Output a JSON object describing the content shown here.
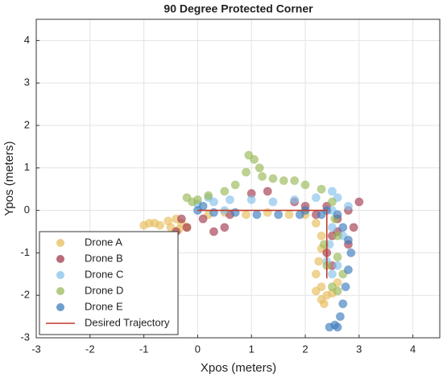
{
  "chart_data": {
    "type": "scatter",
    "title": "90 Degree Protected Corner",
    "xlabel": "Xpos (meters)",
    "ylabel": "Ypos (meters)",
    "xlim": [
      -3,
      4.5
    ],
    "ylim": [
      -3,
      4.5
    ],
    "xticks": [
      -3,
      -2,
      -1,
      0,
      1,
      2,
      3,
      4
    ],
    "yticks": [
      -3,
      -2,
      -1,
      0,
      1,
      2,
      3,
      4
    ],
    "grid": true,
    "legend": "lower left",
    "series": [
      {
        "name": "Drone A",
        "color": "#e6bd5c",
        "x": [
          -1.0,
          -0.9,
          -0.8,
          -0.7,
          -0.55,
          -0.4,
          -0.3,
          -0.2,
          -0.35,
          -0.5,
          0.2,
          0.5,
          0.9,
          1.3,
          1.7,
          2.0,
          2.2,
          2.3,
          2.3,
          2.25,
          2.2,
          2.3,
          2.4,
          2.3,
          2.2,
          2.35,
          2.5,
          2.6
        ],
        "y": [
          -0.35,
          -0.3,
          -0.3,
          -0.35,
          -0.25,
          -0.2,
          -0.3,
          -0.4,
          -0.45,
          -0.4,
          -0.1,
          -0.05,
          -0.1,
          -0.05,
          -0.1,
          -0.1,
          -0.3,
          -0.6,
          -0.9,
          -1.2,
          -1.5,
          -1.8,
          -2.0,
          -2.1,
          -1.9,
          -2.2,
          -1.95,
          -1.7
        ]
      },
      {
        "name": "Drone B",
        "color": "#a33a4e",
        "x": [
          -0.3,
          -0.4,
          -0.2,
          0.1,
          0.3,
          0.5,
          0.6,
          1.0,
          1.3,
          1.8,
          2.0,
          2.2,
          2.4,
          2.6,
          2.5,
          2.4,
          2.5,
          2.8,
          2.9,
          3.0,
          2.8,
          2.6
        ],
        "y": [
          -0.2,
          -0.5,
          -0.4,
          -0.2,
          -0.5,
          -0.4,
          -0.1,
          0.4,
          0.45,
          0.2,
          0.1,
          -0.1,
          0.1,
          -0.2,
          -0.6,
          -1.0,
          -1.3,
          -0.8,
          -0.4,
          0.2,
          0.0,
          -0.5
        ]
      },
      {
        "name": "Drone C",
        "color": "#86c2ea",
        "x": [
          0.0,
          0.3,
          0.6,
          1.0,
          1.4,
          1.8,
          2.2,
          2.5,
          2.6,
          2.5,
          2.5,
          2.45,
          2.4,
          2.5,
          2.6,
          2.7,
          2.8,
          0.2,
          0.5
        ],
        "y": [
          0.15,
          0.2,
          0.25,
          0.25,
          0.2,
          0.25,
          0.3,
          0.45,
          0.3,
          0.0,
          -0.4,
          -0.8,
          -1.2,
          -1.5,
          -1.3,
          -0.6,
          0.1,
          0.3,
          0.0
        ]
      },
      {
        "name": "Drone D",
        "color": "#9aba58",
        "x": [
          -0.2,
          -0.1,
          0.2,
          0.5,
          0.7,
          0.9,
          0.95,
          1.05,
          1.15,
          1.2,
          1.4,
          1.6,
          1.8,
          2.0,
          2.3,
          2.5,
          2.55,
          2.6,
          2.6,
          2.7,
          2.6,
          2.5,
          2.4,
          2.35,
          0.0
        ],
        "y": [
          0.3,
          0.2,
          0.35,
          0.45,
          0.6,
          0.9,
          1.3,
          1.2,
          1.0,
          0.8,
          0.75,
          0.7,
          0.7,
          0.6,
          0.5,
          0.2,
          -0.2,
          -0.6,
          -1.1,
          -1.5,
          -1.9,
          -1.8,
          -1.3,
          -0.8,
          0.25
        ]
      },
      {
        "name": "Drone E",
        "color": "#3e7dbd",
        "x": [
          0.0,
          0.3,
          0.7,
          1.1,
          1.5,
          1.9,
          2.3,
          2.6,
          2.7,
          2.8,
          2.85,
          2.8,
          2.75,
          2.7,
          2.65,
          2.55,
          2.45,
          2.6,
          2.0,
          2.4,
          0.1
        ],
        "y": [
          0.0,
          -0.05,
          -0.05,
          -0.1,
          -0.1,
          -0.1,
          -0.1,
          -0.1,
          -0.4,
          -0.7,
          -1.0,
          -1.4,
          -1.8,
          -2.2,
          -2.5,
          -2.7,
          -2.75,
          -2.75,
          0.0,
          0.0,
          0.1
        ]
      },
      {
        "name": "Desired Trajectory",
        "color": "#c0392b",
        "mode": "line",
        "x": [
          0,
          2.4,
          2.4
        ],
        "y": [
          0,
          0,
          -1.6
        ]
      }
    ]
  }
}
